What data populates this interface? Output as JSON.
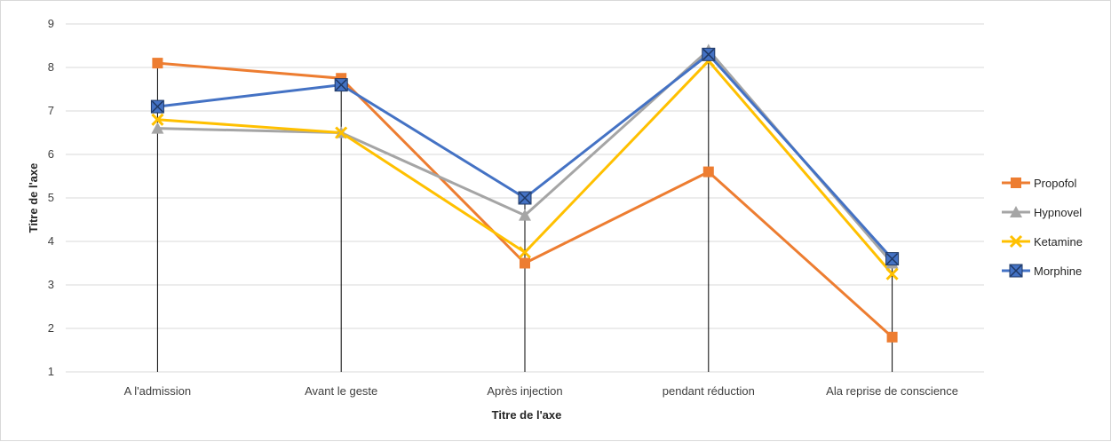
{
  "chart_data": {
    "type": "line",
    "title": "",
    "xlabel": "Titre de l'axe",
    "ylabel": "Titre de l'axe",
    "ylim": [
      1,
      9
    ],
    "yticks": [
      1,
      2,
      3,
      4,
      5,
      6,
      7,
      8,
      9
    ],
    "grid": true,
    "legend_position": "right",
    "categories": [
      "A l'admission",
      "Avant le geste",
      "Après injection",
      "pendant réduction",
      "Ala reprise de conscience"
    ],
    "series": [
      {
        "name": "Propofol",
        "color": "#ED7D31",
        "marker": "square",
        "values": [
          8.1,
          7.75,
          3.5,
          5.6,
          1.8
        ]
      },
      {
        "name": "Hypnovel",
        "color": "#A5A5A5",
        "marker": "triangle",
        "values": [
          6.6,
          6.5,
          4.6,
          8.4,
          3.5
        ]
      },
      {
        "name": "Ketamine",
        "color": "#FFC000",
        "marker": "x",
        "values": [
          6.8,
          6.5,
          3.75,
          8.15,
          3.25
        ]
      },
      {
        "name": "Morphine",
        "color": "#4472C4",
        "marker": "square-x",
        "values": [
          7.1,
          7.6,
          5.0,
          8.3,
          3.6
        ]
      }
    ]
  }
}
